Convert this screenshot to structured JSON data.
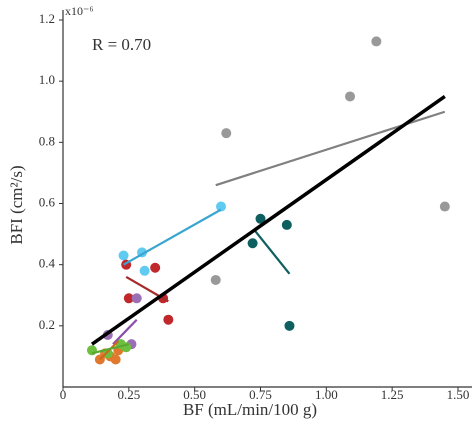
{
  "chart_data": {
    "type": "scatter",
    "exponent_label": "x10⁻⁶",
    "annotation": "R = 0.70",
    "xlabel": "BF (mL/min/100 g)",
    "ylabel": "BFI (cm²/s)",
    "xlim": [
      0,
      1.5
    ],
    "ylim": [
      0,
      1.2
    ],
    "xticks": [
      0,
      0.25,
      {
        "value": 0.5,
        "label": "0.50"
      },
      0.75,
      {
        "value": 1,
        "label": "1.00"
      },
      1.25,
      {
        "value": 1.5,
        "label": "1.50"
      }
    ],
    "yticks": [
      0.2,
      0.4,
      0.6,
      0.8,
      {
        "value": 1,
        "label": "1.0"
      },
      {
        "value": 1.2,
        "label": "1.2"
      }
    ],
    "series": [
      {
        "color": "#999999",
        "x": [
          1.19,
          1.09,
          0.62,
          1.45,
          0.58
        ],
        "values": [
          1.13,
          0.95,
          0.83,
          0.59,
          0.35
        ],
        "fit": {
          "color": "#808080",
          "x": [
            0.58,
            1.45
          ],
          "y": [
            0.66,
            0.9
          ]
        }
      },
      {
        "color": "#0e5f5f",
        "x": [
          0.75,
          0.85,
          0.72,
          0.86
        ],
        "values": [
          0.55,
          0.53,
          0.47,
          0.2
        ],
        "fit": {
          "color": "#0e5f5f",
          "x": [
            0.73,
            0.86
          ],
          "y": [
            0.51,
            0.37
          ]
        }
      },
      {
        "color": "#5fcbf0",
        "x": [
          0.23,
          0.3,
          0.31,
          0.6
        ],
        "values": [
          0.43,
          0.44,
          0.38,
          0.59
        ],
        "fit": {
          "color": "#3aa6d0",
          "x": [
            0.23,
            0.6
          ],
          "y": [
            0.4,
            0.58
          ]
        }
      },
      {
        "color": "#c0282b",
        "x": [
          0.24,
          0.35,
          0.25,
          0.38,
          0.4
        ],
        "values": [
          0.4,
          0.39,
          0.29,
          0.29,
          0.22
        ],
        "fit": {
          "color": "#a52a2a",
          "x": [
            0.24,
            0.4
          ],
          "y": [
            0.36,
            0.28
          ]
        }
      },
      {
        "color": "#9b6fb5",
        "x": [
          0.28,
          0.17,
          0.26,
          0.22
        ],
        "values": [
          0.29,
          0.17,
          0.14,
          0.13
        ],
        "fit": {
          "color": "#8a4fa8",
          "x": [
            0.28,
            0.19
          ],
          "y": [
            0.22,
            0.14
          ]
        }
      },
      {
        "color": "#e0782e",
        "x": [
          0.14,
          0.2,
          0.16,
          0.21,
          0.18
        ],
        "values": [
          0.09,
          0.09,
          0.11,
          0.12,
          0.1
        ],
        "fit": {
          "color": "#d0661c",
          "x": [
            0.14,
            0.21
          ],
          "y": [
            0.09,
            0.15
          ]
        }
      },
      {
        "color": "#6dbf3f",
        "x": [
          0.11,
          0.17,
          0.24,
          0.22
        ],
        "values": [
          0.12,
          0.11,
          0.13,
          0.14
        ],
        "fit": {
          "color": "#5aa830",
          "x": [
            0.11,
            0.25
          ],
          "y": [
            0.11,
            0.14
          ]
        }
      }
    ],
    "fit": {
      "color": "#000000",
      "x": [
        0.11,
        1.45
      ],
      "y": [
        0.14,
        0.95
      ]
    }
  }
}
